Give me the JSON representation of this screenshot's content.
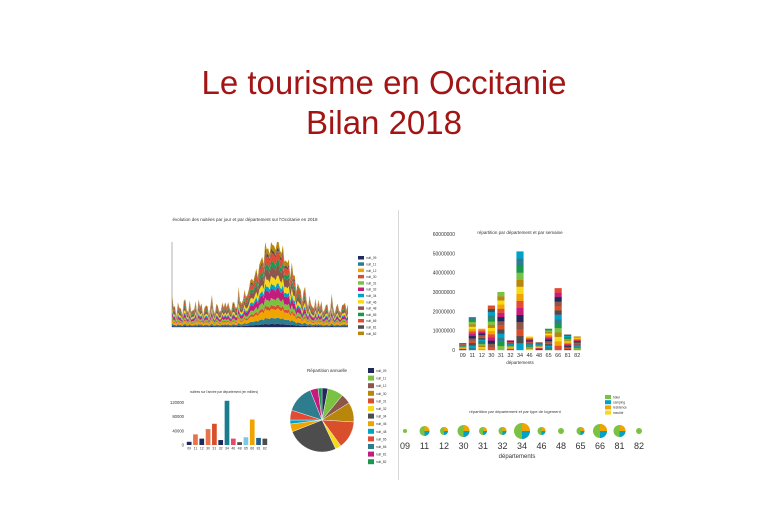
{
  "title": {
    "line1": "Le tourisme en Occitanie",
    "line2": "Bilan 2018"
  },
  "palette": [
    "#1f2a5a",
    "#2e7d8f",
    "#f0a400",
    "#d94f2b",
    "#7cc242",
    "#c51b7d",
    "#00a2c7",
    "#f7d917",
    "#8c564b",
    "#1a9850",
    "#e34a33",
    "#4d4d4d",
    "#b8860b"
  ],
  "chart_data": [
    {
      "type": "area",
      "title": "évolution des nuitées par jour et par département sur l'Occitanie en 2018",
      "legend": [
        "nuit_09",
        "nuit_11",
        "nuit_12",
        "nuit_30",
        "nuit_31",
        "nuit_32",
        "nuit_34",
        "nuit_46",
        "nuit_48",
        "nuit_65",
        "nuit_66",
        "nuit_81",
        "nuit_82"
      ],
      "legend_position": "right"
    },
    {
      "type": "bar",
      "title": "répartition par département et par semaine",
      "categories": [
        "09",
        "11",
        "12",
        "30",
        "31",
        "32",
        "34",
        "46",
        "48",
        "65",
        "66",
        "81",
        "82"
      ],
      "values": [
        3500000,
        17000000,
        11000000,
        23000000,
        30000000,
        5000000,
        51000000,
        7000000,
        4000000,
        11000000,
        32000000,
        8000000,
        7000000
      ],
      "xlabel": "départements",
      "yticks": [
        "0",
        "10000000",
        "20000000",
        "30000000",
        "40000000",
        "50000000",
        "60000000"
      ],
      "ylim": [
        0,
        60000000
      ]
    },
    {
      "type": "bar",
      "title": "nuitées sur l'année par département (en milliers)",
      "categories": [
        "09",
        "11",
        "12",
        "30",
        "31",
        "32",
        "34",
        "46",
        "48",
        "65",
        "66",
        "81",
        "82"
      ],
      "values": [
        9000,
        30000,
        18000,
        45000,
        60000,
        14000,
        125000,
        18000,
        8000,
        22000,
        72000,
        20000,
        18000
      ],
      "yticks": [
        "0",
        "40000",
        "80000",
        "120000"
      ],
      "ylim": [
        0,
        130000
      ]
    },
    {
      "type": "pie",
      "title": "Répartition annuelle",
      "labels": [
        "nuit_09",
        "nuit_11",
        "nuit_12",
        "nuit_30",
        "nuit_31",
        "nuit_32",
        "nuit_34",
        "nuit_46",
        "nuit_48",
        "nuit_65",
        "nuit_66",
        "nuit_81",
        "nuit_82"
      ],
      "values": [
        3,
        8,
        5,
        10,
        14,
        3,
        26,
        4,
        2,
        5,
        14,
        4,
        2
      ]
    },
    {
      "type": "scatter",
      "title": "répartition par département et par type de logement",
      "categories": [
        "09",
        "11",
        "12",
        "30",
        "31",
        "32",
        "34",
        "46",
        "48",
        "65",
        "66",
        "81",
        "82"
      ],
      "sizes": [
        2,
        5,
        4,
        6,
        4,
        4,
        8,
        4,
        3,
        4,
        7,
        6,
        3
      ],
      "xlabel": "départements",
      "legend": [
        "hôtel",
        "camping",
        "résidence",
        "meublé"
      ]
    }
  ]
}
